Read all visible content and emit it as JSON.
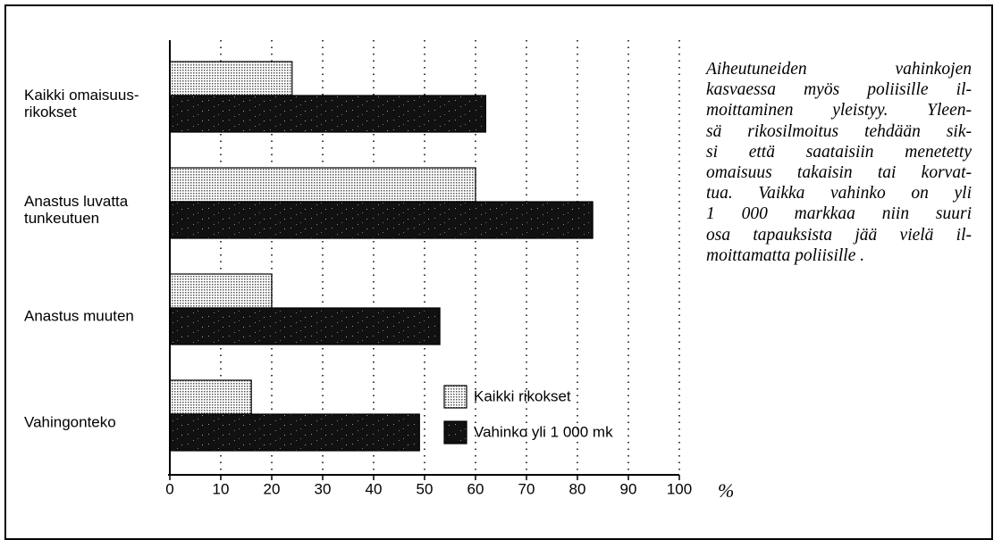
{
  "chart_data": {
    "type": "barh",
    "categories": [
      "Kaikki omaisuus-\nrikokset",
      "Anastus luvatta\ntunkeutuen",
      "Anastus muuten",
      "Vahingonteko"
    ],
    "series": [
      {
        "name": "Kaikki rikokset",
        "color": "#c4c4c4",
        "values": [
          24,
          60,
          20,
          16
        ]
      },
      {
        "name": "Vahinko yli 1 000 mk",
        "color": "#111111",
        "values": [
          62,
          83,
          53,
          49
        ]
      }
    ],
    "xlim": [
      0,
      100
    ],
    "xticks": [
      0,
      10,
      20,
      30,
      40,
      50,
      60,
      70,
      80,
      90,
      100
    ],
    "xlabel": "%",
    "grid": true,
    "legend": "lower right",
    "annotation": [
      "Aiheutuneiden vahinkojen",
      "kasvaessa myös poliisille il-",
      "moittaminen yleistyy. Yleen-",
      "sä rikosilmoitus tehdään sik-",
      "si että saataisiin menetetty",
      "omaisuus takaisin tai korvat-",
      "tua. Vaikka vahinko on yli",
      "1 000 markkaa niin suuri",
      "osa tapauksista jää vielä il-",
      "moittamatta poliisille ."
    ]
  }
}
